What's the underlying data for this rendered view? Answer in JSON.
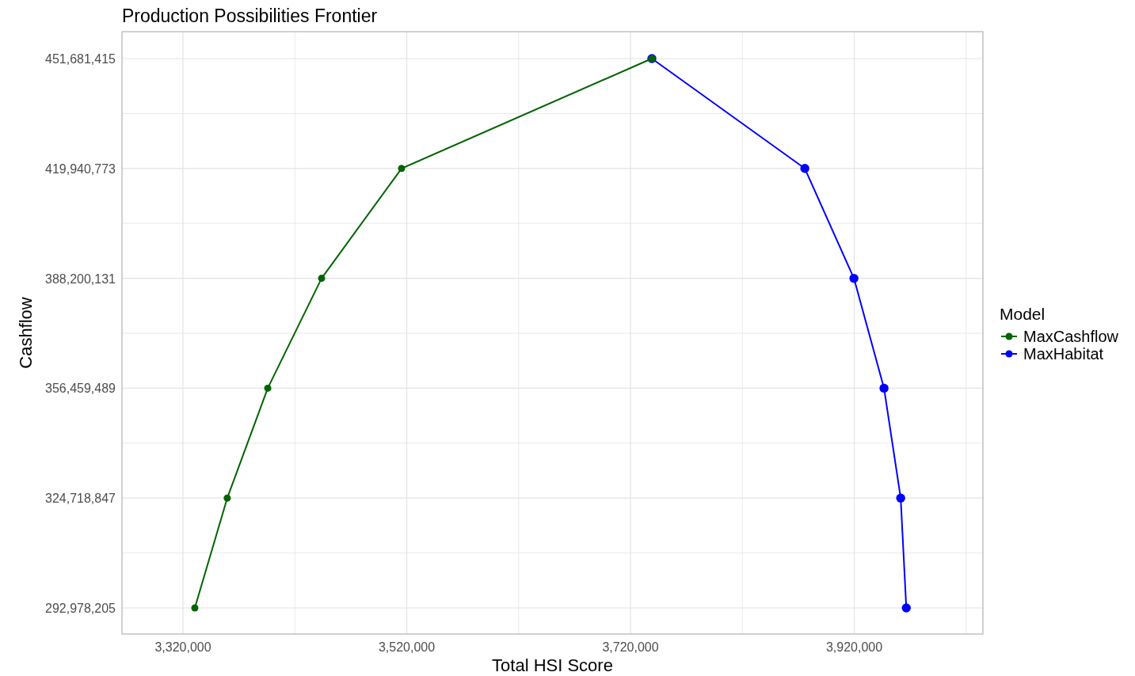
{
  "chart_data": {
    "type": "line",
    "title": "Production Possibilities Frontier",
    "xlabel": "Total HSI Score",
    "ylabel": "Cashflow",
    "legend_title": "Model",
    "xlim": [
      3265500,
      4035000
    ],
    "ylim": [
      285432000,
      459456000
    ],
    "xticks": [
      {
        "value": 3320000,
        "label": "3,320,000"
      },
      {
        "value": 3420000,
        "label": null
      },
      {
        "value": 3520000,
        "label": "3,520,000"
      },
      {
        "value": 3620000,
        "label": null
      },
      {
        "value": 3720000,
        "label": "3,720,000"
      },
      {
        "value": 3820000,
        "label": null
      },
      {
        "value": 3920000,
        "label": "3,920,000"
      },
      {
        "value": 4020000,
        "label": null
      }
    ],
    "yticks": [
      {
        "value": 292978205,
        "label": "292,978,205"
      },
      {
        "value": 308848526,
        "label": null
      },
      {
        "value": 324718847,
        "label": "324,718,847"
      },
      {
        "value": 340589168,
        "label": null
      },
      {
        "value": 356459489,
        "label": "356,459,489"
      },
      {
        "value": 372329810,
        "label": null
      },
      {
        "value": 388200131,
        "label": "388,200,131"
      },
      {
        "value": 404070452,
        "label": null
      },
      {
        "value": 419940773,
        "label": "419,940,773"
      },
      {
        "value": 435811094,
        "label": null
      },
      {
        "value": 451681415,
        "label": "451,681,415"
      }
    ],
    "grid": true,
    "legend": "right",
    "marker": "circle",
    "line_style": "solid",
    "series": [
      {
        "name": "MaxCashflow",
        "color": "#006400",
        "x": [
          3330600,
          3359600,
          3395800,
          3443900,
          3515400,
          3739100
        ],
        "values": [
          292978205,
          324718847,
          356459489,
          388200131,
          419940773,
          451681415
        ]
      },
      {
        "name": "MaxHabitat",
        "color": "#0000ff",
        "x": [
          3739100,
          3875800,
          3919700,
          3946600,
          3961500,
          3966500
        ],
        "values": [
          451681415,
          419940773,
          388200131,
          356459489,
          324718847,
          292978205
        ]
      }
    ]
  }
}
